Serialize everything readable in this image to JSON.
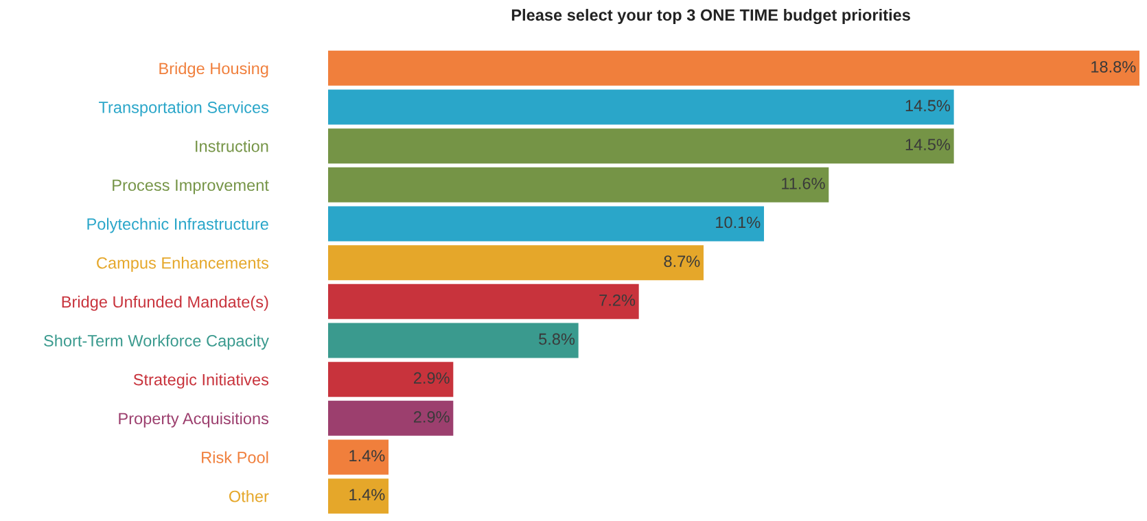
{
  "chart_data": {
    "type": "bar",
    "orientation": "horizontal",
    "title": "Please select your top 3 ONE TIME budget priorities",
    "categories": [
      "Bridge Housing",
      "Transportation Services",
      "Instruction",
      "Process Improvement",
      "Polytechnic Infrastructure",
      "Campus Enhancements",
      "Bridge Unfunded Mandate(s)",
      "Short-Term Workforce Capacity",
      "Strategic Initiatives",
      "Property Acquisitions",
      "Risk Pool",
      "Other"
    ],
    "values": [
      18.8,
      14.5,
      14.5,
      11.6,
      10.1,
      8.7,
      7.2,
      5.8,
      2.9,
      2.9,
      1.4,
      1.4
    ],
    "value_labels": [
      "18.8%",
      "14.5%",
      "14.5%",
      "11.6%",
      "10.1%",
      "8.7%",
      "7.2%",
      "5.8%",
      "2.9%",
      "2.9%",
      "1.4%",
      "1.4%"
    ],
    "colors": [
      "#f07f3c",
      "#2aa6c9",
      "#759446",
      "#759446",
      "#2aa6c9",
      "#e5a72a",
      "#c8333c",
      "#3a9a8e",
      "#c8333c",
      "#9c3f6e",
      "#f07f3c",
      "#e5a72a"
    ],
    "grid": false,
    "legend": false
  }
}
